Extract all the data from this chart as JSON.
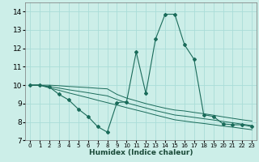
{
  "xlabel": "Humidex (Indice chaleur)",
  "background_color": "#cceee8",
  "grid_color": "#aaddd8",
  "line_color": "#1a6b5a",
  "x_main": [
    0,
    1,
    2,
    3,
    4,
    5,
    6,
    7,
    8,
    9,
    10,
    11,
    12,
    13,
    14,
    15,
    16,
    17,
    18,
    19,
    20,
    21,
    22,
    23
  ],
  "y_main": [
    10.0,
    10.0,
    9.9,
    9.5,
    9.2,
    8.7,
    8.3,
    7.75,
    7.45,
    9.05,
    9.1,
    11.8,
    9.55,
    12.5,
    13.85,
    13.85,
    12.2,
    11.4,
    8.4,
    8.3,
    7.9,
    7.85,
    7.85,
    7.75
  ],
  "y_line1": [
    10.0,
    10.0,
    10.0,
    9.97,
    9.93,
    9.9,
    9.87,
    9.83,
    9.8,
    9.5,
    9.3,
    9.15,
    9.0,
    8.87,
    8.75,
    8.65,
    8.6,
    8.52,
    8.45,
    8.37,
    8.28,
    8.2,
    8.12,
    8.05
  ],
  "y_line2": [
    10.0,
    10.0,
    9.85,
    9.72,
    9.58,
    9.45,
    9.32,
    9.18,
    9.05,
    8.92,
    8.78,
    8.65,
    8.52,
    8.38,
    8.25,
    8.12,
    8.05,
    7.98,
    7.92,
    7.85,
    7.78,
    7.72,
    7.65,
    7.58
  ],
  "y_line3": [
    10.0,
    10.0,
    9.92,
    9.84,
    9.75,
    9.67,
    9.59,
    9.5,
    9.42,
    9.22,
    9.04,
    8.9,
    8.76,
    8.62,
    8.5,
    8.38,
    8.32,
    8.25,
    8.18,
    8.11,
    8.03,
    7.96,
    7.88,
    7.81
  ],
  "ylim": [
    7,
    14.5
  ],
  "xlim": [
    -0.5,
    23.5
  ],
  "yticks": [
    7,
    8,
    9,
    10,
    11,
    12,
    13,
    14
  ],
  "xticks": [
    0,
    1,
    2,
    3,
    4,
    5,
    6,
    7,
    8,
    9,
    10,
    11,
    12,
    13,
    14,
    15,
    16,
    17,
    18,
    19,
    20,
    21,
    22,
    23
  ]
}
